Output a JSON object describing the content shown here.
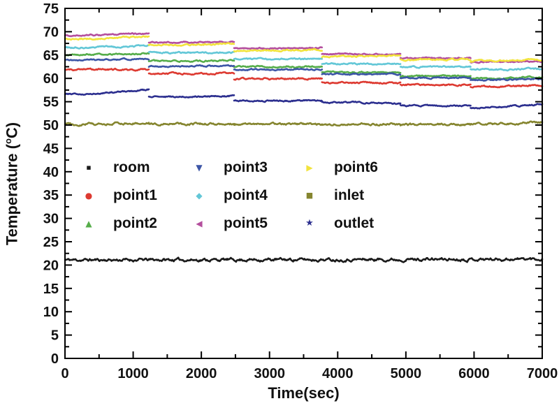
{
  "figure": {
    "xlabel": "Time(sec)",
    "ylabel": {
      "prefix": "Temperature (",
      "sup": "o",
      "suffix": "C)"
    },
    "background": "#ffffff",
    "axis_color": "#000000"
  },
  "chart_data": {
    "type": "line",
    "title": "",
    "xlabel": "Time(sec)",
    "ylabel": "Temperature (°C)",
    "xlim": [
      0,
      7000
    ],
    "ylim": [
      0,
      75
    ],
    "grid": false,
    "x_ticks": [
      0,
      1000,
      2000,
      3000,
      4000,
      5000,
      6000,
      7000
    ],
    "x_minor_tick_step": 500,
    "y_ticks": [
      0,
      5,
      10,
      15,
      20,
      25,
      30,
      35,
      40,
      45,
      50,
      55,
      60,
      65,
      70,
      75
    ],
    "y_minor_tick_step": 2.5,
    "legend_position": "inside center-left, 3 columns, no frame",
    "segment_boundaries_sec": [
      0,
      1230,
      2480,
      3770,
      4920,
      5950,
      7000
    ],
    "series": [
      {
        "name": "room",
        "color": "#1a1a1a",
        "marker": "small-square",
        "noise": 0.4,
        "segments": [
          {
            "t": [
              0,
              7000
            ],
            "v": [
              21.1,
              21.3
            ]
          }
        ]
      },
      {
        "name": "point1",
        "color": "#dd3a31",
        "marker": "circle",
        "noise": 0.22,
        "segments": [
          {
            "t": [
              0,
              1230
            ],
            "v": [
              61.9,
              61.9
            ]
          },
          {
            "t": [
              1230,
              2480
            ],
            "v": [
              61.0,
              61.1
            ]
          },
          {
            "t": [
              2480,
              3770
            ],
            "v": [
              59.9,
              60.0
            ]
          },
          {
            "t": [
              3770,
              4920
            ],
            "v": [
              59.1,
              59.0
            ]
          },
          {
            "t": [
              4920,
              5950
            ],
            "v": [
              58.6,
              58.6
            ]
          },
          {
            "t": [
              5950,
              7000
            ],
            "v": [
              58.2,
              58.5
            ]
          }
        ]
      },
      {
        "name": "point2",
        "color": "#56ad4a",
        "marker": "triangle-up",
        "noise": 0.2,
        "segments": [
          {
            "t": [
              0,
              1230
            ],
            "v": [
              65.1,
              65.4
            ]
          },
          {
            "t": [
              1230,
              2480
            ],
            "v": [
              63.7,
              63.8
            ]
          },
          {
            "t": [
              2480,
              3770
            ],
            "v": [
              62.5,
              62.5
            ]
          },
          {
            "t": [
              3770,
              4920
            ],
            "v": [
              61.3,
              61.3
            ]
          },
          {
            "t": [
              4920,
              5950
            ],
            "v": [
              60.5,
              60.6
            ]
          },
          {
            "t": [
              5950,
              7000
            ],
            "v": [
              60.0,
              60.3
            ]
          }
        ]
      },
      {
        "name": "point3",
        "color": "#3c55a6",
        "marker": "triangle-down",
        "noise": 0.18,
        "segments": [
          {
            "t": [
              0,
              1230
            ],
            "v": [
              63.9,
              64.2
            ]
          },
          {
            "t": [
              1230,
              2480
            ],
            "v": [
              62.6,
              62.7
            ]
          },
          {
            "t": [
              2480,
              3770
            ],
            "v": [
              61.9,
              61.9
            ]
          },
          {
            "t": [
              3770,
              4920
            ],
            "v": [
              60.9,
              60.9
            ]
          },
          {
            "t": [
              4920,
              5950
            ],
            "v": [
              60.1,
              60.1
            ]
          },
          {
            "t": [
              5950,
              7000
            ],
            "v": [
              59.6,
              59.9
            ]
          }
        ]
      },
      {
        "name": "point4",
        "color": "#63c7d7",
        "marker": "diamond",
        "noise": 0.2,
        "segments": [
          {
            "t": [
              0,
              1230
            ],
            "v": [
              66.6,
              67.0
            ]
          },
          {
            "t": [
              1230,
              2480
            ],
            "v": [
              65.5,
              65.6
            ]
          },
          {
            "t": [
              2480,
              3770
            ],
            "v": [
              64.1,
              64.2
            ]
          },
          {
            "t": [
              3770,
              4920
            ],
            "v": [
              63.1,
              63.1
            ]
          },
          {
            "t": [
              4920,
              5950
            ],
            "v": [
              62.5,
              62.5
            ]
          },
          {
            "t": [
              5950,
              7000
            ],
            "v": [
              61.9,
              62.1
            ]
          }
        ]
      },
      {
        "name": "point5",
        "color": "#b44f9d",
        "marker": "triangle-left",
        "noise": 0.18,
        "segments": [
          {
            "t": [
              0,
              1230
            ],
            "v": [
              69.2,
              69.7
            ]
          },
          {
            "t": [
              1230,
              2480
            ],
            "v": [
              67.7,
              67.8
            ]
          },
          {
            "t": [
              2480,
              3770
            ],
            "v": [
              66.4,
              66.5
            ]
          },
          {
            "t": [
              3770,
              4920
            ],
            "v": [
              65.2,
              65.2
            ]
          },
          {
            "t": [
              4920,
              5950
            ],
            "v": [
              64.3,
              64.3
            ]
          },
          {
            "t": [
              5950,
              7000
            ],
            "v": [
              63.5,
              63.6
            ]
          }
        ]
      },
      {
        "name": "point6",
        "color": "#f2e33c",
        "marker": "triangle-right",
        "noise": 0.2,
        "segments": [
          {
            "t": [
              0,
              1230
            ],
            "v": [
              68.4,
              69.0
            ]
          },
          {
            "t": [
              1230,
              2480
            ],
            "v": [
              67.1,
              67.4
            ]
          },
          {
            "t": [
              2480,
              3770
            ],
            "v": [
              65.9,
              66.1
            ]
          },
          {
            "t": [
              3770,
              4920
            ],
            "v": [
              64.7,
              64.9
            ]
          },
          {
            "t": [
              4920,
              5950
            ],
            "v": [
              64.0,
              64.1
            ]
          },
          {
            "t": [
              5950,
              7000
            ],
            "v": [
              63.7,
              64.0
            ]
          }
        ]
      },
      {
        "name": "inlet",
        "color": "#85852f",
        "marker": "square",
        "noise": 0.28,
        "segments": [
          {
            "t": [
              0,
              1230
            ],
            "v": [
              50.2,
              50.5
            ]
          },
          {
            "t": [
              1230,
              2480
            ],
            "v": [
              50.2,
              50.3
            ]
          },
          {
            "t": [
              2480,
              3770
            ],
            "v": [
              50.2,
              50.2
            ]
          },
          {
            "t": [
              3770,
              4920
            ],
            "v": [
              50.2,
              50.2
            ]
          },
          {
            "t": [
              4920,
              5950
            ],
            "v": [
              50.1,
              50.1
            ]
          },
          {
            "t": [
              5950,
              7000
            ],
            "v": [
              50.1,
              50.7
            ]
          }
        ]
      },
      {
        "name": "outlet",
        "color": "#2c2f8f",
        "marker": "star",
        "noise": 0.2,
        "segments": [
          {
            "t": [
              0,
              1230
            ],
            "v": [
              56.6,
              57.6
            ]
          },
          {
            "t": [
              1230,
              2480
            ],
            "v": [
              56.1,
              56.2
            ]
          },
          {
            "t": [
              2480,
              3770
            ],
            "v": [
              55.2,
              55.2
            ]
          },
          {
            "t": [
              3770,
              4920
            ],
            "v": [
              54.9,
              54.6
            ]
          },
          {
            "t": [
              4920,
              5950
            ],
            "v": [
              54.2,
              54.1
            ]
          },
          {
            "t": [
              5950,
              7000
            ],
            "v": [
              53.7,
              54.5
            ]
          }
        ]
      }
    ],
    "legend_columns": [
      [
        "room",
        "point1",
        "point2"
      ],
      [
        "point3",
        "point4",
        "point5"
      ],
      [
        "point6",
        "inlet",
        "outlet"
      ]
    ],
    "marker_glyphs": {
      "small-square": "▪",
      "circle": "●",
      "triangle-up": "▲",
      "triangle-down": "▼",
      "diamond": "◆",
      "triangle-left": "◀",
      "triangle-right": "▶",
      "square": "■",
      "star": "★"
    }
  }
}
